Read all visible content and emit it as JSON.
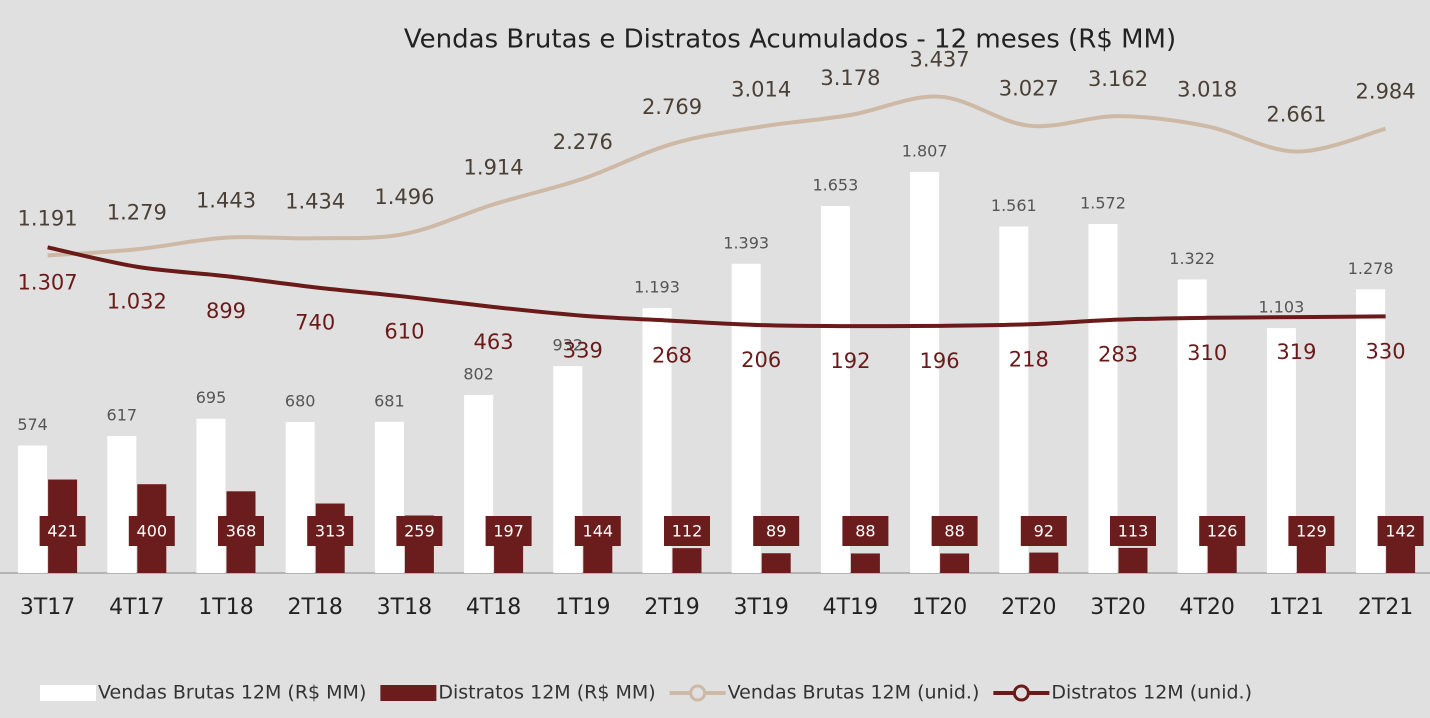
{
  "chart_data": {
    "type": "bar-line",
    "title": "Vendas Brutas e Distratos Acumulados - 12 meses (R$ MM)",
    "categories": [
      "3T17",
      "4T17",
      "1T18",
      "2T18",
      "3T18",
      "4T18",
      "1T19",
      "2T19",
      "3T19",
      "4T19",
      "1T20",
      "2T20",
      "3T20",
      "4T20",
      "1T21",
      "2T21"
    ],
    "ylim": [
      0,
      2500
    ],
    "y2lim": [
      -3300,
      4550
    ],
    "series": [
      {
        "name": "Vendas Brutas 12M (R$ MM)",
        "type": "bar",
        "color": "#ffffff",
        "values": [
          574,
          617,
          695,
          680,
          681,
          802,
          932,
          1193,
          1393,
          1653,
          1807,
          1561,
          1572,
          1322,
          1103,
          1278
        ],
        "value_labels": [
          "574",
          "617",
          "695",
          "680",
          "681",
          "802",
          "932",
          "1.193",
          "1.393",
          "1.653",
          "1.807",
          "1.561",
          "1.572",
          "1.322",
          "1.103",
          "1.278"
        ]
      },
      {
        "name": "Distratos 12M (R$ MM)",
        "type": "bar",
        "color": "#6b1c1c",
        "values": [
          421,
          400,
          368,
          313,
          259,
          197,
          144,
          112,
          89,
          88,
          88,
          92,
          113,
          126,
          129,
          142
        ]
      },
      {
        "name": "Vendas Brutas 12M (unid.)",
        "type": "line",
        "axis": "y2",
        "color": "#cdb9a5",
        "values": [
          1191,
          1279,
          1443,
          1434,
          1496,
          1914,
          2276,
          2769,
          3014,
          3178,
          3437,
          3027,
          3162,
          3018,
          2661,
          2984
        ],
        "value_labels": [
          "1.191",
          "1.279",
          "1.443",
          "1.434",
          "1.496",
          "1.914",
          "2.276",
          "2.769",
          "3.014",
          "3.178",
          "3.437",
          "3.027",
          "3.162",
          "3.018",
          "2.661",
          "2.984"
        ]
      },
      {
        "name": "Distratos 12M (unid.)",
        "type": "line",
        "axis": "y2",
        "color": "#6b1a1a",
        "values": [
          1307,
          1032,
          899,
          740,
          610,
          463,
          339,
          268,
          206,
          192,
          196,
          218,
          283,
          310,
          319,
          330
        ],
        "value_labels": [
          "1.307",
          "1.032",
          "899",
          "740",
          "610",
          "463",
          "339",
          "268",
          "206",
          "192",
          "196",
          "218",
          "283",
          "310",
          "319",
          "330"
        ]
      }
    ]
  }
}
